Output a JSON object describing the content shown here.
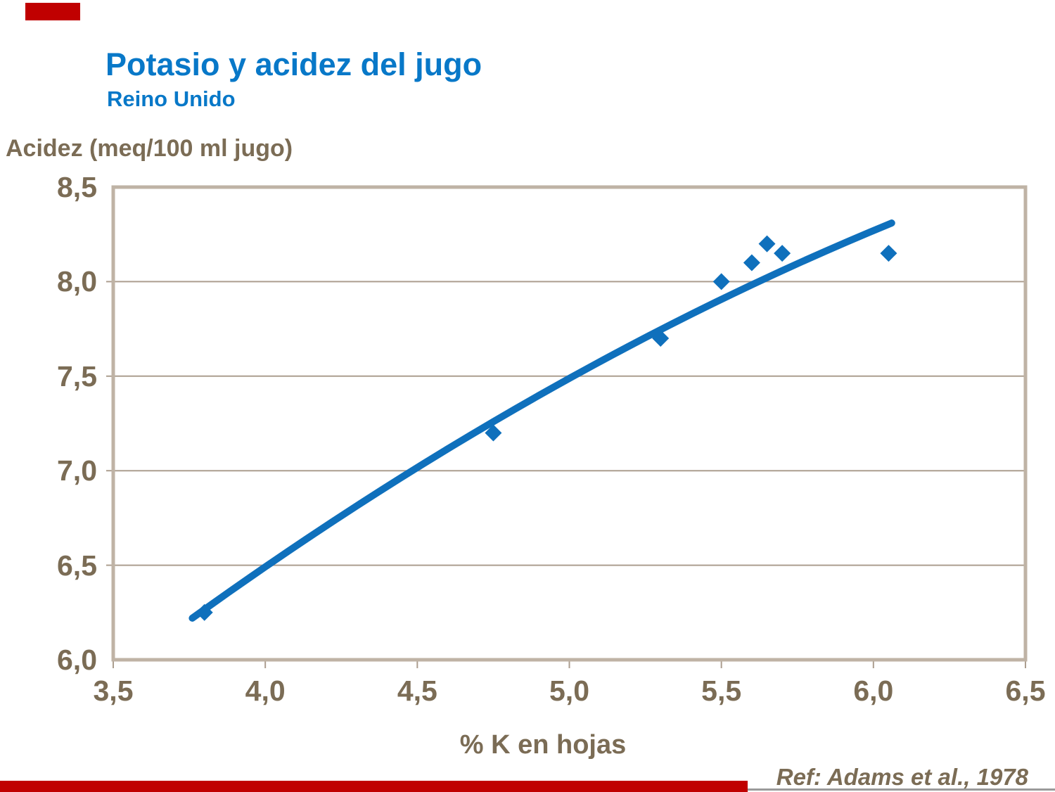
{
  "slide": {
    "title": "Potasio y acidez del jugo",
    "subtitle": "Reino Unido",
    "reference": "Ref: Adams et al., 1978"
  },
  "chart_data": {
    "type": "scatter",
    "title": "Potasio y acidez del jugo",
    "subtitle": "Reino Unido",
    "xlabel": "% K en hojas",
    "ylabel": "Acidez (meq/100 ml jugo)",
    "xlim": [
      3.5,
      6.5
    ],
    "ylim": [
      6.0,
      8.5
    ],
    "x_tick_values": [
      3.5,
      4.0,
      4.5,
      5.0,
      5.5,
      6.0,
      6.5
    ],
    "x_tick_labels": [
      "3,5",
      "4,0",
      "4,5",
      "5,0",
      "5,5",
      "6,0",
      "6,5"
    ],
    "y_tick_values": [
      8.5,
      8.0,
      7.5,
      7.0,
      6.5,
      6.0
    ],
    "y_tick_labels": [
      "8,5",
      "8,0",
      "7,5",
      "7,0",
      "6,5",
      "6,0"
    ],
    "grid": true,
    "legend": false,
    "points": [
      [
        3.8,
        6.25
      ],
      [
        4.75,
        7.2
      ],
      [
        5.3,
        7.7
      ],
      [
        5.5,
        8.0
      ],
      [
        5.6,
        8.1
      ],
      [
        5.65,
        8.2
      ],
      [
        5.7,
        8.15
      ],
      [
        6.05,
        8.15
      ]
    ],
    "trend_curve": {
      "start": [
        3.76,
        6.22
      ],
      "control": [
        4.91,
        7.55
      ],
      "end": [
        6.06,
        8.31
      ]
    },
    "colors": {
      "series_blue": "#0F70BC",
      "title_blue": "#0878C8",
      "label_brown": "#7B6C55",
      "frame_tan": "#BFB3A5",
      "grid_tan": "#AC9E8F",
      "accent_red": "#C00000",
      "footer_gray": "#9A9A9A"
    }
  }
}
